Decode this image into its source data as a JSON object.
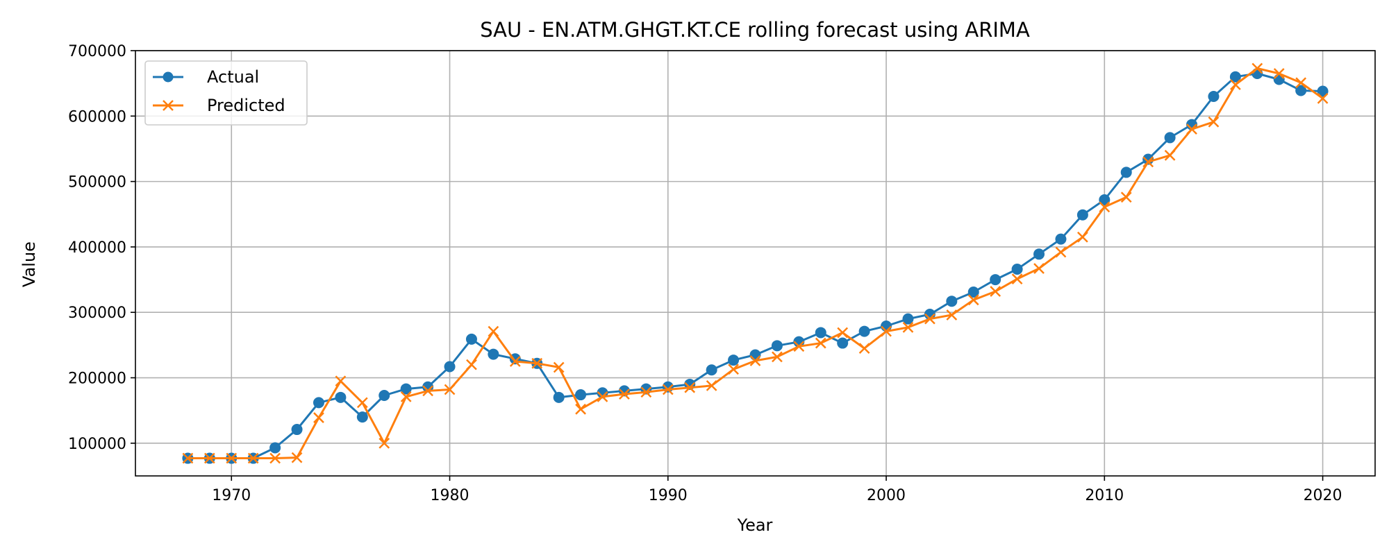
{
  "chart_data": {
    "type": "line",
    "title": "SAU - EN.ATM.GHGT.KT.CE rolling forecast using ARIMA",
    "xlabel": "Year",
    "ylabel": "Value",
    "xlim": [
      1965.6,
      2022.4
    ],
    "ylim": [
      50000,
      700000
    ],
    "grid": true,
    "legend_position": "upper-left",
    "x_ticks": [
      1970,
      1980,
      1990,
      2000,
      2010,
      2020
    ],
    "y_ticks": [
      100000,
      200000,
      300000,
      400000,
      500000,
      600000,
      700000
    ],
    "x": [
      1968,
      1969,
      1970,
      1971,
      1972,
      1973,
      1974,
      1975,
      1976,
      1977,
      1978,
      1979,
      1980,
      1981,
      1982,
      1983,
      1984,
      1985,
      1986,
      1987,
      1988,
      1989,
      1990,
      1991,
      1992,
      1993,
      1994,
      1995,
      1996,
      1997,
      1998,
      1999,
      2000,
      2001,
      2002,
      2003,
      2004,
      2005,
      2006,
      2007,
      2008,
      2009,
      2010,
      2011,
      2012,
      2013,
      2014,
      2015,
      2016,
      2017,
      2018,
      2019,
      2020
    ],
    "series": [
      {
        "name": "Actual",
        "color": "#1f77b4",
        "marker": "circle",
        "values": [
          77000,
          77000,
          77000,
          77000,
          93000,
          121000,
          162000,
          170000,
          140000,
          173000,
          183000,
          186000,
          217000,
          259000,
          236000,
          229000,
          222000,
          170000,
          174000,
          177000,
          180000,
          183000,
          186000,
          190000,
          212000,
          227000,
          235000,
          249000,
          255000,
          269000,
          253000,
          271000,
          279000,
          290000,
          297000,
          317000,
          331000,
          350000,
          366000,
          389000,
          412000,
          449000,
          472000,
          514000,
          534000,
          567000,
          587000,
          630000,
          660000,
          665000,
          656000,
          639000,
          638000
        ]
      },
      {
        "name": "Predicted",
        "color": "#ff7f0e",
        "marker": "x",
        "values": [
          77000,
          77000,
          77000,
          77000,
          77000,
          78000,
          139000,
          195000,
          162000,
          100000,
          171000,
          180000,
          182000,
          220000,
          271000,
          225000,
          222000,
          216000,
          152000,
          171000,
          175000,
          178000,
          182000,
          185000,
          188000,
          213000,
          226000,
          232000,
          248000,
          253000,
          269000,
          245000,
          271000,
          277000,
          290000,
          296000,
          319000,
          332000,
          351000,
          367000,
          392000,
          415000,
          461000,
          476000,
          530000,
          540000,
          580000,
          591000,
          648000,
          673000,
          665000,
          651000,
          627000
        ]
      }
    ]
  }
}
